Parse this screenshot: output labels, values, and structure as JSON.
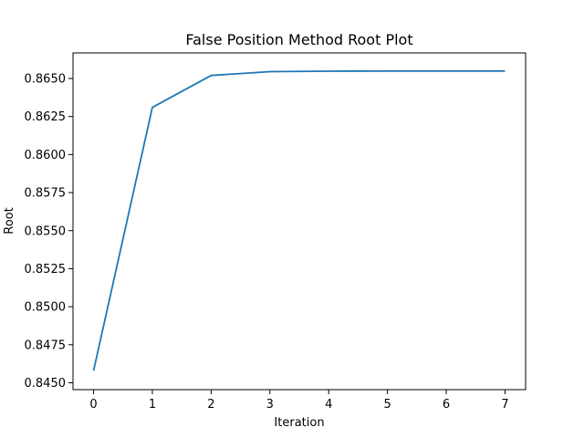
{
  "chart_data": {
    "type": "line",
    "title": "False Position Method Root Plot",
    "xlabel": "Iteration",
    "ylabel": "Root",
    "x": [
      0,
      1,
      2,
      3,
      4,
      5,
      6,
      7
    ],
    "series": [
      {
        "values": [
          0.8458,
          0.8631,
          0.8652,
          0.86545,
          0.86548,
          0.86549,
          0.86549,
          0.86549
        ],
        "color": "#1f77b4"
      }
    ],
    "xlim": [
      -0.35,
      7.35
    ],
    "ylim": [
      0.84455,
      0.86668
    ],
    "xticks": [
      0,
      1,
      2,
      3,
      4,
      5,
      6,
      7
    ],
    "yticks": [
      0.845,
      0.8475,
      0.85,
      0.8525,
      0.855,
      0.8575,
      0.86,
      0.8625,
      0.865
    ],
    "ytick_format_decimals": 4,
    "grid": false,
    "legend": "none"
  }
}
